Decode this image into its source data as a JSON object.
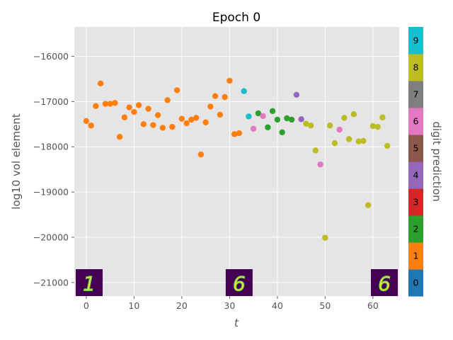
{
  "chart_data": {
    "type": "scatter",
    "title": "Epoch 0",
    "xlabel": "t",
    "ylabel": "log10 vol element",
    "xlim": [
      -2.5,
      65.5
    ],
    "ylim": [
      -21300,
      -15350
    ],
    "xticks": [
      0,
      10,
      20,
      30,
      40,
      50,
      60
    ],
    "yticks": [
      -21000,
      -20000,
      -19000,
      -18000,
      -17000,
      -16000
    ],
    "ytick_labels": [
      "−21000",
      "−20000",
      "−19000",
      "−18000",
      "−17000",
      "−16000"
    ],
    "grid": true,
    "x": [
      0,
      1,
      2,
      3,
      4,
      5,
      6,
      7,
      8,
      9,
      10,
      11,
      12,
      13,
      14,
      15,
      16,
      17,
      18,
      19,
      20,
      21,
      22,
      23,
      24,
      25,
      26,
      27,
      28,
      29,
      30,
      31,
      32,
      33,
      34,
      35,
      36,
      37,
      38,
      39,
      40,
      41,
      42,
      43,
      44,
      45,
      46,
      47,
      48,
      49,
      50,
      51,
      52,
      53,
      54,
      55,
      56,
      57,
      58,
      59,
      60,
      61,
      62,
      63
    ],
    "y": [
      -17430,
      -17530,
      -17100,
      -16600,
      -17050,
      -17050,
      -17030,
      -17780,
      -17350,
      -17130,
      -17230,
      -17080,
      -17500,
      -17160,
      -17520,
      -17300,
      -17580,
      -16970,
      -17560,
      -16750,
      -17380,
      -17480,
      -17400,
      -17360,
      -18170,
      -17460,
      -17110,
      -16880,
      -17290,
      -16900,
      -16540,
      -17720,
      -17700,
      -16770,
      -17330,
      -17600,
      -17260,
      -17320,
      -17570,
      -17210,
      -17400,
      -17680,
      -17370,
      -17400,
      -16850,
      -17390,
      -17490,
      -17530,
      -18080,
      -18390,
      -20010,
      -17530,
      -17920,
      -17620,
      -17360,
      -17830,
      -17280,
      -17880,
      -17870,
      -19290,
      -17540,
      -17560,
      -17350,
      -17980
    ],
    "prediction": [
      1,
      1,
      1,
      1,
      1,
      1,
      1,
      1,
      1,
      1,
      1,
      1,
      1,
      1,
      1,
      1,
      1,
      1,
      1,
      1,
      1,
      1,
      1,
      1,
      1,
      1,
      1,
      1,
      1,
      1,
      1,
      1,
      1,
      9,
      9,
      6,
      2,
      6,
      2,
      2,
      2,
      2,
      2,
      2,
      4,
      4,
      8,
      8,
      8,
      6,
      8,
      8,
      8,
      6,
      8,
      8,
      8,
      8,
      8,
      8,
      8,
      8,
      8,
      8
    ],
    "inset_images": [
      {
        "t": 0,
        "digit": "1"
      },
      {
        "t": 32,
        "digit": "6"
      },
      {
        "t": 63,
        "digit": "6"
      }
    ],
    "colorbar": {
      "label": "digit prediction",
      "ticks": [
        "0",
        "1",
        "2",
        "3",
        "4",
        "5",
        "6",
        "7",
        "8",
        "9"
      ],
      "colors": [
        "#1f77b4",
        "#ff7f0e",
        "#2ca02c",
        "#d62728",
        "#9467bd",
        "#8c564b",
        "#e377c2",
        "#7f7f7f",
        "#bcbd22",
        "#17becf"
      ]
    },
    "background_color": "#e5e5e5"
  }
}
